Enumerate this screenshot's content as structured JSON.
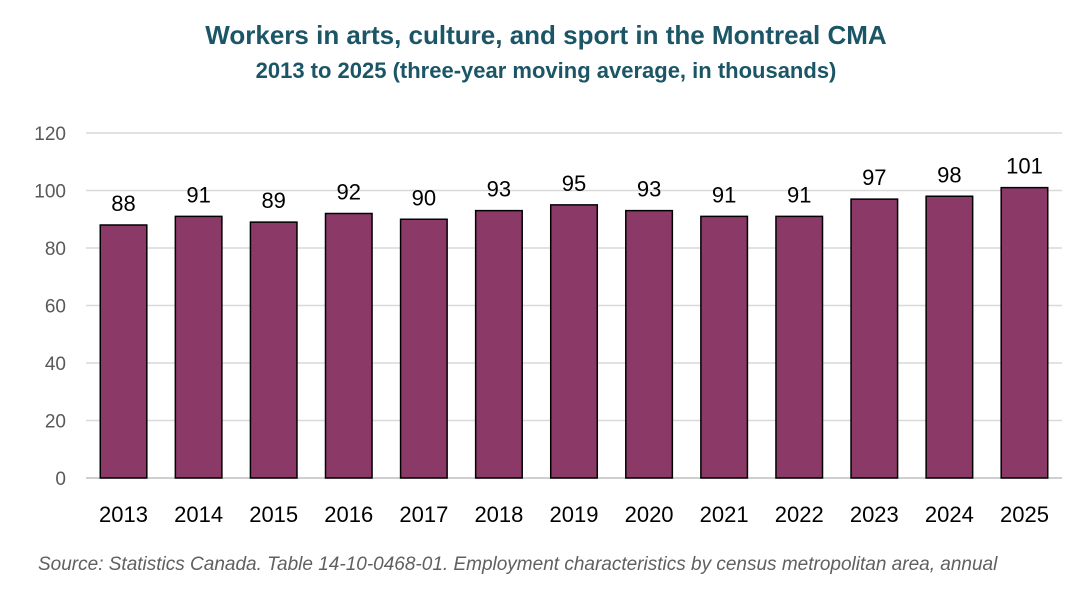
{
  "chart_data": {
    "type": "bar",
    "title": "Workers in arts, culture, and sport in the Montreal CMA",
    "subtitle": "2013 to 2025 (three-year moving average, in thousands)",
    "categories": [
      "2013",
      "2014",
      "2015",
      "2016",
      "2017",
      "2018",
      "2019",
      "2020",
      "2021",
      "2022",
      "2023",
      "2024",
      "2025"
    ],
    "values": [
      88,
      91,
      89,
      92,
      90,
      93,
      95,
      93,
      91,
      91,
      97,
      98,
      101
    ],
    "data_labels": [
      "88",
      "91",
      "89",
      "92",
      "90",
      "93",
      "95",
      "93",
      "91",
      "91",
      "97",
      "98",
      "101"
    ],
    "y_ticks": [
      0,
      20,
      40,
      60,
      80,
      100,
      120
    ],
    "ylim": [
      0,
      120
    ],
    "grid": true,
    "bar_color": "#8b3a67",
    "bar_outline": "#000000",
    "grid_color": "#d9d9d9"
  },
  "source": "Source: Statistics Canada. Table 14-10-0468-01. Employment characteristics by census metropolitan area, annual"
}
